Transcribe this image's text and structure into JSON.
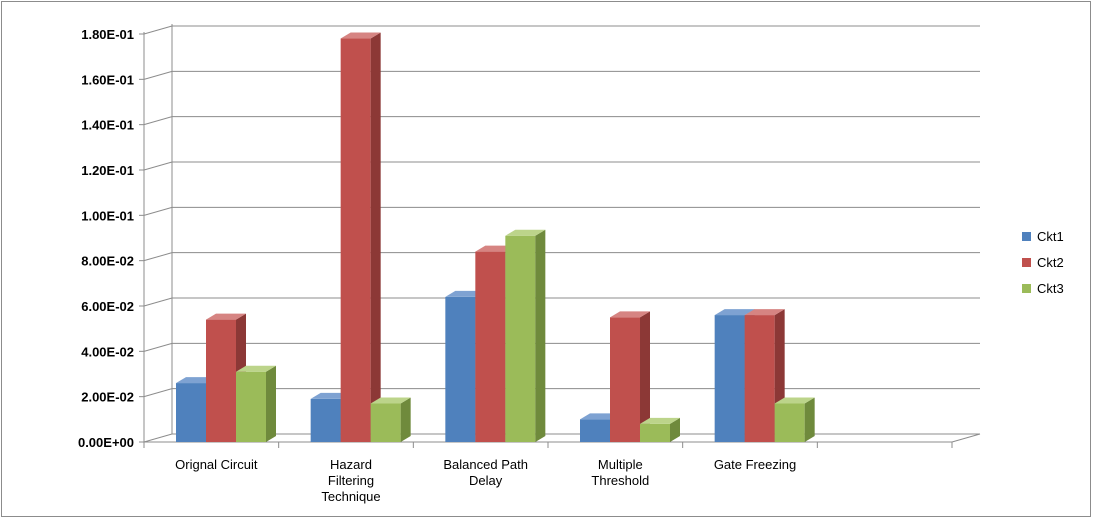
{
  "chart_data": {
    "type": "bar",
    "title": "",
    "xlabel": "",
    "ylabel": "",
    "categories": [
      [
        "Orignal Circuit"
      ],
      [
        "Hazard",
        "Filtering",
        "Technique"
      ],
      [
        "Balanced Path",
        "Delay"
      ],
      [
        "Multiple",
        "Threshold"
      ],
      [
        "Gate Freezing"
      ]
    ],
    "series": [
      {
        "name": "Ckt1",
        "values": [
          0.026,
          0.019,
          0.064,
          0.01,
          0.056
        ]
      },
      {
        "name": "Ckt2",
        "values": [
          0.054,
          0.178,
          0.084,
          0.055,
          0.056
        ]
      },
      {
        "name": "Ckt3",
        "values": [
          0.031,
          0.017,
          0.091,
          0.008,
          0.017
        ]
      }
    ],
    "ylim": [
      0,
      0.18
    ],
    "yticks": [
      0.0,
      0.02,
      0.04,
      0.06,
      0.08,
      0.1,
      0.12,
      0.14,
      0.16,
      0.18
    ],
    "ytick_labels": [
      "0.00E+00",
      "2.00E-02",
      "4.00E-02",
      "6.00E-02",
      "8.00E-02",
      "1.00E-01",
      "1.20E-01",
      "1.40E-01",
      "1.60E-01",
      "1.80E-01"
    ],
    "grid": true,
    "legend_position": "right",
    "colors": {
      "Ckt1": {
        "front": "#4f81bd",
        "side": "#385d8a",
        "top": "#7ea2d2"
      },
      "Ckt2": {
        "front": "#c0504d",
        "side": "#8c3836",
        "top": "#d68482"
      },
      "Ckt3": {
        "front": "#9bbb59",
        "side": "#6f8a3c",
        "top": "#bcd48a"
      }
    }
  }
}
